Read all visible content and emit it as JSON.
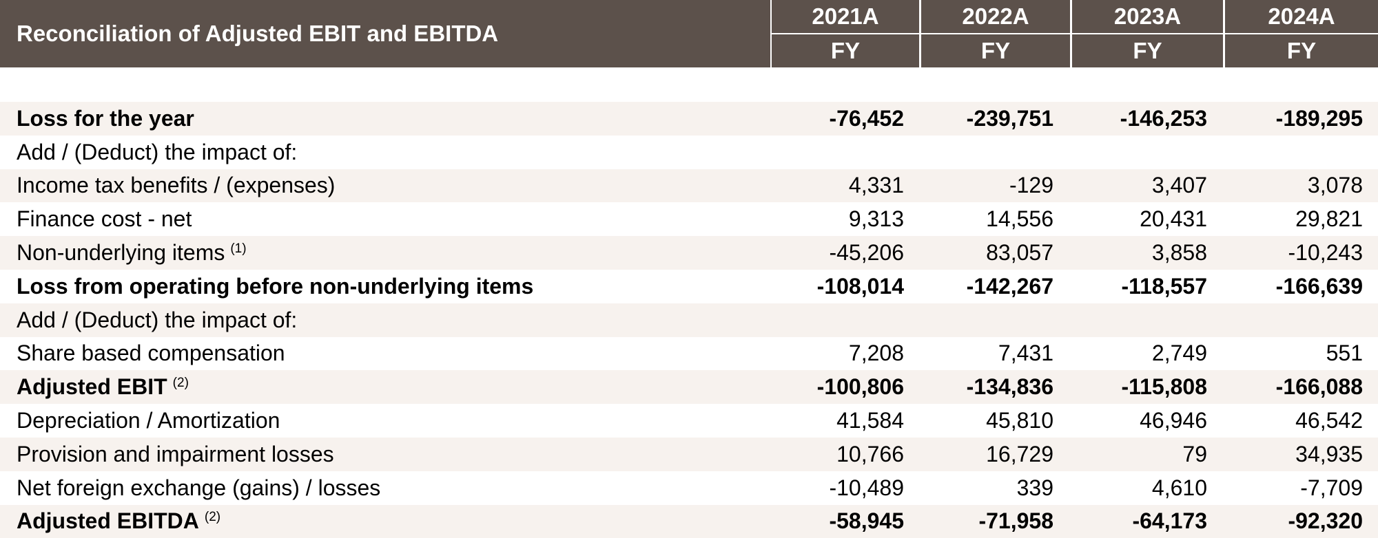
{
  "header": {
    "title": "Reconciliation of Adjusted EBIT and EBITDA",
    "years": [
      "2021A",
      "2022A",
      "2023A",
      "2024A"
    ],
    "periods": [
      "FY",
      "FY",
      "FY",
      "FY"
    ]
  },
  "rows": [
    {
      "label": "Loss for the year",
      "note": "",
      "bold": true,
      "shade": true,
      "values": [
        "-76,452",
        "-239,751",
        "-146,253",
        "-189,295"
      ]
    },
    {
      "label": "Add / (Deduct) the impact of:",
      "note": "",
      "bold": false,
      "shade": false,
      "values": [
        "",
        "",
        "",
        ""
      ]
    },
    {
      "label": "Income tax benefits / (expenses)",
      "note": "",
      "bold": false,
      "shade": true,
      "values": [
        "4,331",
        "-129",
        "3,407",
        "3,078"
      ]
    },
    {
      "label": "Finance cost - net",
      "note": "",
      "bold": false,
      "shade": false,
      "values": [
        "9,313",
        "14,556",
        "20,431",
        "29,821"
      ]
    },
    {
      "label": "Non-underlying items",
      "note": "(1)",
      "bold": false,
      "shade": true,
      "values": [
        "-45,206",
        "83,057",
        "3,858",
        "-10,243"
      ]
    },
    {
      "label": "Loss from operating before non-underlying items",
      "note": "",
      "bold": true,
      "shade": false,
      "values": [
        "-108,014",
        "-142,267",
        "-118,557",
        "-166,639"
      ]
    },
    {
      "label": "Add / (Deduct) the impact of:",
      "note": "",
      "bold": false,
      "shade": true,
      "values": [
        "",
        "",
        "",
        ""
      ]
    },
    {
      "label": "Share based compensation",
      "note": "",
      "bold": false,
      "shade": false,
      "values": [
        "7,208",
        "7,431",
        "2,749",
        "551"
      ]
    },
    {
      "label": "Adjusted EBIT",
      "note": "(2)",
      "bold": true,
      "shade": true,
      "values": [
        "-100,806",
        "-134,836",
        "-115,808",
        "-166,088"
      ]
    },
    {
      "label": "Depreciation / Amortization",
      "note": "",
      "bold": false,
      "shade": false,
      "values": [
        "41,584",
        "45,810",
        "46,946",
        "46,542"
      ]
    },
    {
      "label": "Provision and impairment losses",
      "note": "",
      "bold": false,
      "shade": true,
      "values": [
        "10,766",
        "16,729",
        "79",
        "34,935"
      ]
    },
    {
      "label": "Net foreign exchange (gains) / losses",
      "note": "",
      "bold": false,
      "shade": false,
      "values": [
        "-10,489",
        "339",
        "4,610",
        "-7,709"
      ]
    },
    {
      "label": "Adjusted EBITDA",
      "note": "(2)",
      "bold": true,
      "shade": true,
      "values": [
        "-58,945",
        "-71,958",
        "-64,173",
        "-92,320"
      ]
    }
  ],
  "colors": {
    "header_bg": "#5c514b",
    "header_text": "#ffffff",
    "row_shade": "#f7f2ee"
  }
}
